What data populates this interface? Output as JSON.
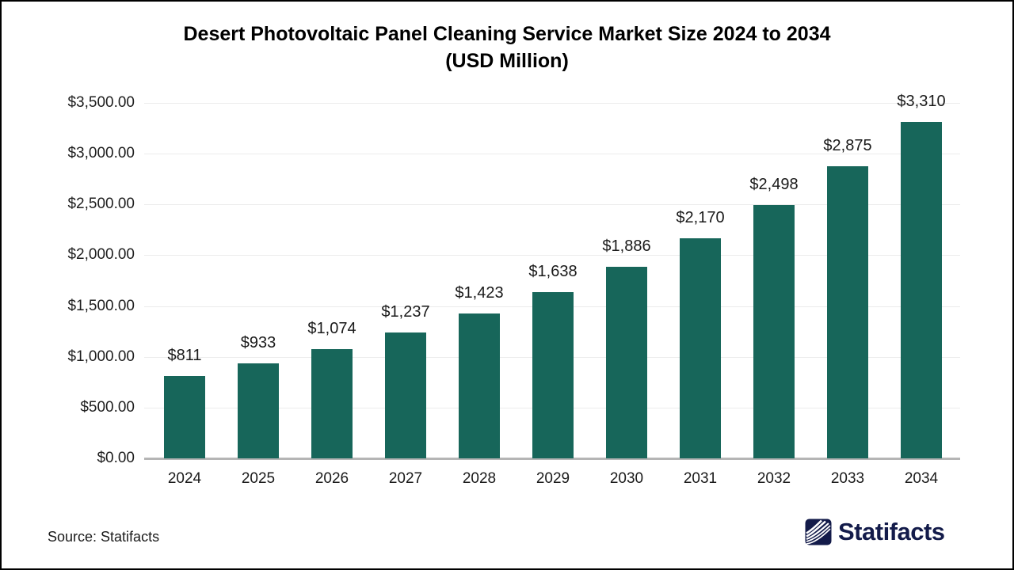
{
  "title_lines": [
    "Desert Photovoltaic Panel Cleaning Service Market Size 2024 to 2034",
    "(USD Million)"
  ],
  "source_note": "Source: Statifacts",
  "brand": {
    "name": "Statifacts",
    "logo_icon": "waves-square-icon",
    "color": "#131B4A"
  },
  "colors": {
    "bar": "#17665A",
    "gridline": "#ececec",
    "axis_line": "#b5b5b5",
    "title_text": "#000000",
    "label_text": "#1a1a1a"
  },
  "chart_data": {
    "type": "bar",
    "title": "Desert Photovoltaic Panel Cleaning Service Market Size 2024 to 2034 (USD Million)",
    "xlabel": "",
    "ylabel": "",
    "categories": [
      "2024",
      "2025",
      "2026",
      "2027",
      "2028",
      "2029",
      "2030",
      "2031",
      "2032",
      "2033",
      "2034"
    ],
    "values": [
      811,
      933,
      1074,
      1237,
      1423,
      1638,
      1886,
      2170,
      2498,
      2875,
      3310
    ],
    "value_labels": [
      "$811",
      "$933",
      "$1,074",
      "$1,237",
      "$1,423",
      "$1,638",
      "$1,886",
      "$2,170",
      "$2,498",
      "$2,875",
      "$3,310"
    ],
    "ylim": [
      0,
      3500
    ],
    "y_ticks": {
      "values": [
        0,
        500,
        1000,
        1500,
        2000,
        2500,
        3000,
        3500
      ],
      "labels": [
        "$0.00",
        "$500.00",
        "$1,000.00",
        "$1,500.00",
        "$2,000.00",
        "$2,500.00",
        "$3,000.00",
        "$3,500.00"
      ]
    },
    "grid": "horizontal",
    "legend": "none",
    "bar_color": "#17665A"
  }
}
